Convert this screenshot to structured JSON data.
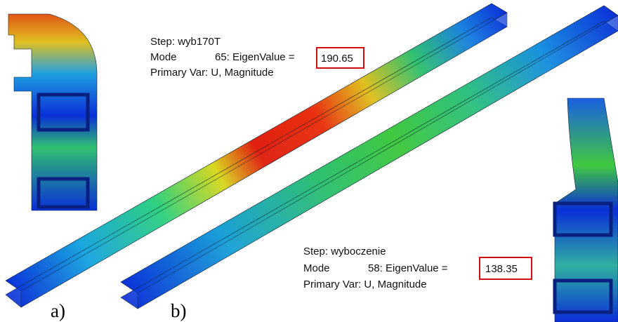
{
  "panel_a": {
    "step": "Step: wyb170T",
    "mode": "Mode",
    "eigen_label": "65: EigenValue =",
    "eigen_value": "190.65",
    "primary_var": "Primary Var: U, Magnitude",
    "label": "a)"
  },
  "panel_b": {
    "step": "Step: wyboczenie",
    "mode": "Mode",
    "eigen_label": "58: EigenValue =",
    "eigen_value": "138.35",
    "primary_var": "Primary Var: U, Magnitude",
    "label": "b)"
  }
}
